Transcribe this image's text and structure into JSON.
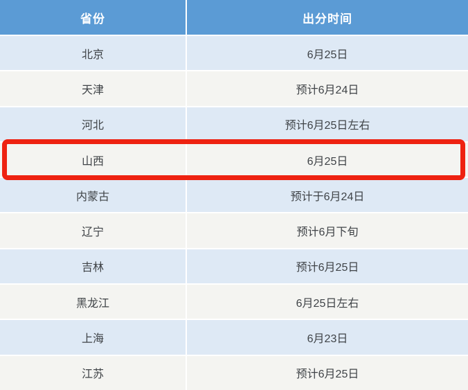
{
  "table": {
    "columns": [
      {
        "key": "province",
        "label": "省份"
      },
      {
        "key": "time",
        "label": "出分时间"
      }
    ],
    "rows": [
      {
        "province": "北京",
        "time": "6月25日",
        "highlight": false
      },
      {
        "province": "天津",
        "time": "预计6月24日",
        "highlight": false
      },
      {
        "province": "河北",
        "time": "预计6月25日左右",
        "highlight": false
      },
      {
        "province": "山西",
        "time": "6月25日",
        "highlight": true
      },
      {
        "province": "内蒙古",
        "time": "预计于6月24日",
        "highlight": false
      },
      {
        "province": "辽宁",
        "time": "预计6月下旬",
        "highlight": false
      },
      {
        "province": "吉林",
        "time": "预计6月25日",
        "highlight": false
      },
      {
        "province": "黑龙江",
        "time": "6月25日左右",
        "highlight": false
      },
      {
        "province": "上海",
        "time": "6月23日",
        "highlight": false
      },
      {
        "province": "江苏",
        "time": "预计6月25日",
        "highlight": false
      }
    ]
  },
  "annotation": {
    "highlighted_province": "山西"
  },
  "colors": {
    "header_bg": "#5b9bd5",
    "header_text": "#ffffff",
    "row_blue": "#dee9f5",
    "row_white": "#f4f4f1",
    "cell_text": "#3f4347",
    "separator": "#ffffff",
    "highlight_border": "#ee2211"
  }
}
